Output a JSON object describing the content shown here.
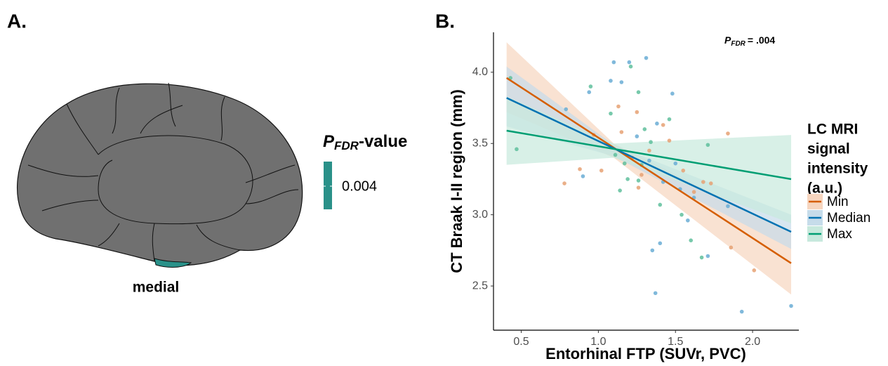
{
  "panel_a": {
    "label": "A.",
    "view": "medial",
    "legend_title": {
      "symbol": "P",
      "subscript": "FDR",
      "suffix": "-value"
    },
    "legend_value": 0.004,
    "color": "#2a9189"
  },
  "chart_data": {
    "type": "scatter",
    "label": "B.",
    "annotation": {
      "symbol": "P",
      "subscript": "FDR",
      "text": "= .004"
    },
    "x_label": "Entorhinal FTP (SUVr, PVC)",
    "y_label": "CT Braak I-II region (mm)",
    "xlim": [
      0.32,
      2.3
    ],
    "ylim": [
      2.19,
      4.28
    ],
    "xticks": [
      {
        "value": 0.5,
        "label": "0.5"
      },
      {
        "value": 1.0,
        "label": "1.0"
      },
      {
        "value": 1.5,
        "label": "1.5"
      },
      {
        "value": 2.0,
        "label": "2.0"
      }
    ],
    "yticks": [
      {
        "value": 2.5,
        "label": "2.5"
      },
      {
        "value": 3.0,
        "label": "3.0"
      },
      {
        "value": 3.5,
        "label": "3.5"
      },
      {
        "value": 4.0,
        "label": "4.0"
      }
    ],
    "legend_title": [
      "LC MRI",
      "signal",
      "intensity",
      "(a.u.)"
    ],
    "series": [
      {
        "name": "Min",
        "color": "#d55e00",
        "point_color": "#e6a173",
        "band_color": "#f6d5bf",
        "points_x": [
          0.78,
          0.88,
          0.97,
          1.02,
          1.13,
          1.15,
          1.22,
          1.25,
          1.28,
          1.33,
          1.42,
          1.46,
          1.55,
          1.62,
          1.68,
          1.73,
          1.84,
          1.86,
          2.01,
          1.26
        ],
        "points_y": [
          3.22,
          3.32,
          3.56,
          3.31,
          3.76,
          3.58,
          3.4,
          3.72,
          3.28,
          3.45,
          3.63,
          3.52,
          3.31,
          3.16,
          3.23,
          3.22,
          3.57,
          2.77,
          2.61,
          3.19
        ],
        "x": [
          0.405,
          2.25
        ],
        "values": [
          3.96,
          2.66
        ],
        "band_x": [
          0.405,
          1.1,
          2.25
        ],
        "band_lower": [
          3.72,
          3.4,
          2.44
        ],
        "band_upper": [
          4.21,
          3.5,
          2.88
        ]
      },
      {
        "name": "Median",
        "color": "#0072b2",
        "point_color": "#6aadd5",
        "band_color": "#c6dcea",
        "points_x": [
          0.79,
          0.9,
          0.94,
          1.08,
          1.1,
          1.15,
          1.2,
          1.25,
          1.31,
          1.33,
          1.38,
          1.4,
          1.42,
          1.48,
          1.5,
          1.53,
          1.58,
          1.62,
          1.71,
          1.84,
          1.93,
          2.25,
          1.37,
          1.35
        ],
        "points_y": [
          3.74,
          3.27,
          3.86,
          3.94,
          4.07,
          3.93,
          4.07,
          3.55,
          4.1,
          3.38,
          3.64,
          2.8,
          3.23,
          3.85,
          3.36,
          3.18,
          2.96,
          3.12,
          2.71,
          3.06,
          2.32,
          2.36,
          2.45,
          2.75
        ],
        "x": [
          0.405,
          2.25
        ],
        "values": [
          3.82,
          2.88
        ],
        "band_x": [
          0.405,
          1.1,
          2.25
        ],
        "band_lower": [
          3.62,
          3.41,
          2.76
        ],
        "band_upper": [
          4.04,
          3.49,
          3.0
        ]
      },
      {
        "name": "Max",
        "color": "#009e73",
        "point_color": "#5fbf9c",
        "band_color": "#c7e9dd",
        "points_x": [
          0.43,
          0.47,
          0.95,
          1.08,
          1.11,
          1.14,
          1.19,
          1.21,
          1.26,
          1.28,
          1.3,
          1.34,
          1.4,
          1.46,
          1.54,
          1.6,
          1.67,
          1.71,
          1.26,
          1.17
        ],
        "points_y": [
          3.96,
          3.46,
          3.9,
          3.71,
          3.42,
          3.17,
          3.25,
          4.04,
          3.86,
          3.35,
          3.6,
          3.51,
          3.07,
          3.67,
          3.0,
          2.82,
          2.7,
          3.49,
          3.24,
          3.36
        ],
        "x": [
          0.405,
          2.25
        ],
        "values": [
          3.59,
          3.25
        ],
        "band_x": [
          0.405,
          1.1,
          2.25
        ],
        "band_lower": [
          3.35,
          3.4,
          2.94
        ],
        "band_upper": [
          3.83,
          3.5,
          3.56
        ]
      }
    ]
  }
}
